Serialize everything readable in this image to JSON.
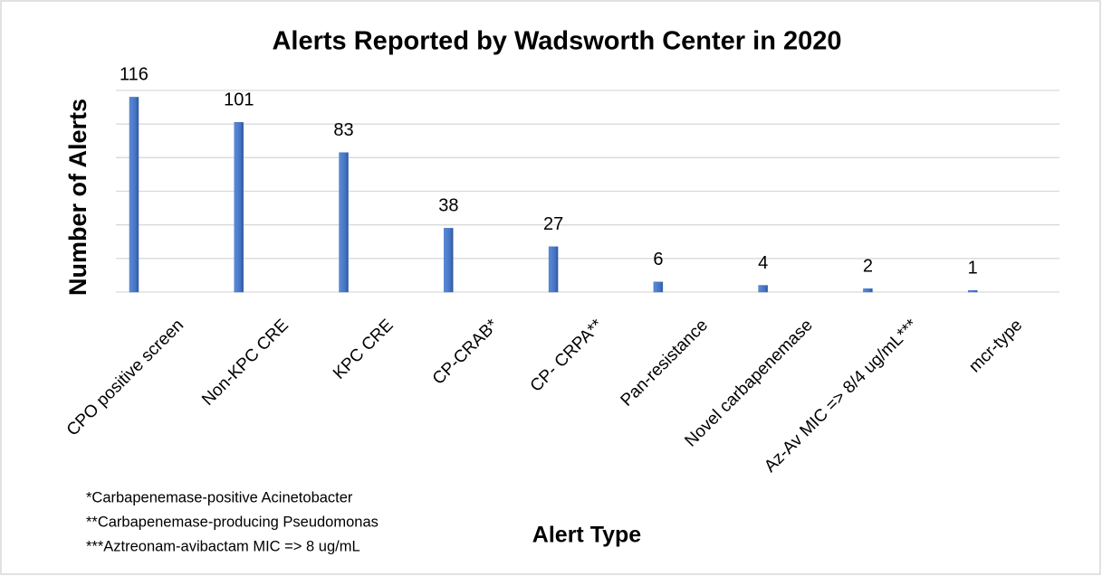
{
  "chart_data": {
    "type": "bar",
    "title": "Alerts Reported by Wadsworth Center in 2020",
    "ylabel": "Number of Alerts",
    "xlabel": "Alert Type",
    "categories": [
      "CPO positive screen",
      "Non-KPC CRE",
      "KPC CRE",
      "CP-CRAB*",
      "CP- CRPA**",
      "Pan-resistance",
      "Novel carbapenemase",
      "Az-Av MIC => 8/4 ug/mL***",
      "mcr-type"
    ],
    "values": [
      116,
      101,
      83,
      38,
      27,
      6,
      4,
      2,
      1
    ],
    "color": "#4472c4",
    "ylim": [
      0,
      120
    ],
    "yticks": [
      0,
      20,
      40,
      60,
      80,
      100,
      120
    ],
    "grid": true,
    "footnotes": [
      "*Carbapenemase-positive  Acinetobacter",
      "**Carbapenemase-producing  Pseudomonas",
      "***Aztreonam-avibactam MIC => 8 ug/mL"
    ]
  }
}
